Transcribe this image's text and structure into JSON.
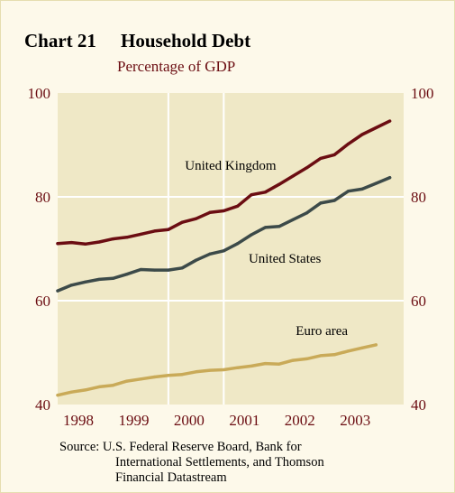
{
  "title": {
    "number": "Chart 21",
    "text": "Household Debt"
  },
  "subtitle": "Percentage of GDP",
  "source": {
    "label": "Source:",
    "lines": [
      "U.S. Federal Reserve Board, Bank for",
      "International Settlements, and Thomson",
      "Financial Datastream"
    ]
  },
  "colors": {
    "background": "#fdf9ea",
    "plot_area": "#efe8c6",
    "grid": "#ffffff",
    "axis_label": "#6b0d12",
    "uk": "#6b0d12",
    "us": "#3c4a49",
    "euro": "#c9aa58"
  },
  "chart_data": {
    "type": "line",
    "title": "Household Debt",
    "subtitle": "Percentage of GDP",
    "ylabel": "",
    "xlabel": "",
    "ylim": [
      40,
      100
    ],
    "yticks": [
      40,
      60,
      80,
      100
    ],
    "y_ticks_both_sides": true,
    "x_year_labels": [
      "1998",
      "1999",
      "2000",
      "2001",
      "2002",
      "2003"
    ],
    "x_range": [
      1997.75,
      2004.0
    ],
    "year_gridlines": [
      1999.75,
      2000.75
    ],
    "grid": true,
    "legend": "inline labels",
    "series": [
      {
        "name": "United Kingdom",
        "label_position": "above",
        "x": [
          1997.75,
          1998.0,
          1998.25,
          1998.5,
          1998.75,
          1999.0,
          1999.25,
          1999.5,
          1999.75,
          2000.0,
          2000.25,
          2000.5,
          2000.75,
          2001.0,
          2001.25,
          2001.5,
          2001.75,
          2002.0,
          2002.25,
          2002.5,
          2002.75,
          2003.0,
          2003.25,
          2003.5,
          2003.75
        ],
        "values": [
          71.0,
          71.2,
          70.9,
          71.3,
          71.9,
          72.2,
          72.8,
          73.4,
          73.7,
          75.1,
          75.8,
          77.0,
          77.3,
          78.2,
          80.4,
          80.9,
          82.4,
          84.0,
          85.6,
          87.4,
          88.1,
          90.2,
          92.0,
          93.3,
          94.6
        ]
      },
      {
        "name": "United States",
        "label_position": "below",
        "x": [
          1997.75,
          1998.0,
          1998.25,
          1998.5,
          1998.75,
          1999.0,
          1999.25,
          1999.5,
          1999.75,
          2000.0,
          2000.25,
          2000.5,
          2000.75,
          2001.0,
          2001.25,
          2001.5,
          2001.75,
          2002.0,
          2002.25,
          2002.5,
          2002.75,
          2003.0,
          2003.25,
          2003.5,
          2003.75
        ],
        "values": [
          61.9,
          63.0,
          63.6,
          64.1,
          64.3,
          65.1,
          66.0,
          65.9,
          65.9,
          66.3,
          67.8,
          69.0,
          69.6,
          71.0,
          72.7,
          74.1,
          74.3,
          75.6,
          76.9,
          78.8,
          79.3,
          81.1,
          81.5,
          82.6,
          83.7
        ]
      },
      {
        "name": "Euro area",
        "label_position": "above",
        "x": [
          1997.75,
          1998.0,
          1998.25,
          1998.5,
          1998.75,
          1999.0,
          1999.25,
          1999.5,
          1999.75,
          2000.0,
          2000.25,
          2000.5,
          2000.75,
          2001.0,
          2001.25,
          2001.5,
          2001.75,
          2002.0,
          2002.25,
          2002.5,
          2002.75,
          2003.0,
          2003.25,
          2003.5
        ],
        "values": [
          41.8,
          42.4,
          42.8,
          43.4,
          43.7,
          44.5,
          44.9,
          45.3,
          45.6,
          45.8,
          46.3,
          46.6,
          46.7,
          47.1,
          47.4,
          47.9,
          47.8,
          48.5,
          48.8,
          49.4,
          49.6,
          50.3,
          50.9,
          51.5
        ]
      }
    ]
  }
}
